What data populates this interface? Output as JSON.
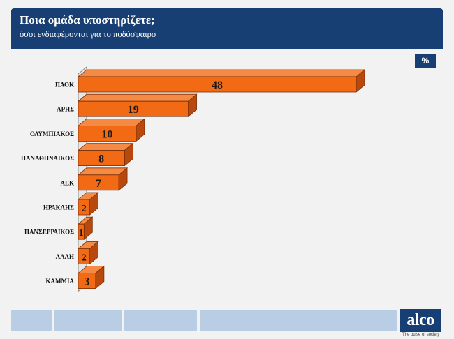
{
  "header": {
    "title": "Ποια ομάδα υποστηρίζετε;",
    "subtitle": "όσοι ενδιαφέρονται για το ποδόσφαιρο"
  },
  "unit_badge": "%",
  "logo": {
    "text": "alco",
    "tagline": "The pulse of society"
  },
  "colors": {
    "header_bg": "#173f73",
    "bar_front": "#f26a14",
    "bar_top": "#f58a45",
    "bar_side": "#b8480c",
    "bar_outline": "#7a2e05",
    "footer_blocks": "#b9cde4"
  },
  "chart_data": {
    "type": "bar",
    "orientation": "horizontal",
    "style": "3d",
    "categories": [
      "ΠΑΟΚ",
      "ΑΡΗΣ",
      "ΟΛΥΜΠΙΑΚΟΣ",
      "ΠΑΝΑΘΗΝΑΙΚΟΣ",
      "ΑΕΚ",
      "ΗΡΑΚΛΗΣ",
      "ΠΑΝΣΕΡΡΑΙΚΟΣ",
      "ΑΛΛΗ",
      "ΚΑΜΜΙΑ"
    ],
    "values": [
      48,
      19,
      10,
      8,
      7,
      2,
      1,
      2,
      3
    ],
    "data_labels": [
      "48",
      "19",
      "10",
      "8",
      "7",
      "2",
      "1",
      "2",
      "3"
    ],
    "title": "Ποια ομάδα υποστηρίζετε;",
    "subtitle": "όσοι ενδιαφέρονται για το ποδόσφαιρο",
    "unit": "%",
    "xlim": [
      0,
      48
    ],
    "grid": false,
    "legend": "none"
  }
}
